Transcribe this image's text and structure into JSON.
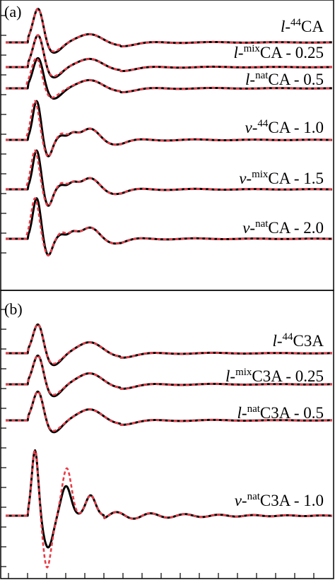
{
  "chart_data": [
    {
      "type": "line",
      "panel_label": "(a)",
      "series_styles": {
        "simulation": {
          "color": "#000000",
          "dash": "solid"
        },
        "model": {
          "color": "#ea3b46",
          "dash": "dotted"
        }
      },
      "curves": [
        {
          "label_prefix": "l-",
          "label_sup": "44",
          "label_main": "CA",
          "label_suffix": "",
          "offset": 0,
          "profile": "liquid",
          "peaks": [
            {
              "x": 1.0,
              "h": 1.05
            },
            {
              "x": 2.6,
              "h": 0.26
            }
          ],
          "dash_shift": 0.0
        },
        {
          "label_prefix": "l-",
          "label_sup": "mix",
          "label_main": "CA",
          "label_suffix": " - 0.25",
          "offset": 0.25,
          "profile": "liquid",
          "peaks": [
            {
              "x": 1.0,
              "h": 1.0
            },
            {
              "x": 2.6,
              "h": 0.26
            }
          ],
          "dash_shift": 0.0
        },
        {
          "label_prefix": "l-",
          "label_sup": "nat",
          "label_main": "CA",
          "label_suffix": " - 0.5",
          "offset": 0.5,
          "profile": "liquid",
          "peaks": [
            {
              "x": 1.0,
              "h": 0.95
            },
            {
              "x": 2.6,
              "h": 0.26
            }
          ],
          "dash_shift": -0.05
        },
        {
          "label_prefix": "v-",
          "label_sup": "44",
          "label_main": "CA",
          "label_suffix": " - 1.0",
          "offset": 1.0,
          "profile": "glass",
          "peaks": [
            {
              "x": 0.95,
              "h": 1.15
            },
            {
              "x": 2.6,
              "h": 0.35
            }
          ],
          "dash_shift": -0.05
        },
        {
          "label_prefix": "v-",
          "label_sup": "mix",
          "label_main": "CA",
          "label_suffix": " - 1.5",
          "offset": 1.5,
          "profile": "glass",
          "peaks": [
            {
              "x": 0.95,
              "h": 1.15
            },
            {
              "x": 2.6,
              "h": 0.35
            }
          ],
          "dash_shift": -0.05
        },
        {
          "label_prefix": "v-",
          "label_sup": "nat",
          "label_main": "CA",
          "label_suffix": " - 2.0",
          "offset": 2.0,
          "profile": "glass",
          "peaks": [
            {
              "x": 0.95,
              "h": 1.2
            },
            {
              "x": 2.6,
              "h": 0.35
            }
          ],
          "dash_shift": -0.05
        }
      ]
    },
    {
      "type": "line",
      "panel_label": "(b)",
      "series_styles": {
        "simulation": {
          "color": "#000000",
          "dash": "solid"
        },
        "model": {
          "color": "#ea3b46",
          "dash": "dotted"
        }
      },
      "curves": [
        {
          "label_prefix": "l-",
          "label_sup": "44",
          "label_main": "C3A",
          "label_suffix": "",
          "offset": 0,
          "profile": "liquid",
          "peaks": [
            {
              "x": 1.0,
              "h": 0.8
            },
            {
              "x": 2.6,
              "h": 0.3
            }
          ],
          "dash_shift": 0.0
        },
        {
          "label_prefix": "l-",
          "label_sup": "mix",
          "label_main": "C3A",
          "label_suffix": " - 0.25",
          "offset": 0.25,
          "profile": "liquid",
          "peaks": [
            {
              "x": 1.0,
              "h": 0.8
            },
            {
              "x": 2.6,
              "h": 0.3
            }
          ],
          "dash_shift": 0.0
        },
        {
          "label_prefix": "l-",
          "label_sup": "nat",
          "label_main": "C3A",
          "label_suffix": " - 0.5",
          "offset": 0.5,
          "profile": "liquid",
          "peaks": [
            {
              "x": 1.0,
              "h": 0.8
            },
            {
              "x": 2.6,
              "h": 0.3
            }
          ],
          "dash_shift": 0.0
        },
        {
          "label_prefix": "v-",
          "label_sup": "nat",
          "label_main": "C3A",
          "label_suffix": " - 1.0",
          "offset": 1.0,
          "profile": "crystal",
          "peaks": [
            {
              "x": 0.9,
              "h": 1.25
            },
            {
              "x": 1.85,
              "h": 0.8
            },
            {
              "x": 2.6,
              "h": 0.55
            }
          ],
          "dash_shift": 0.0
        }
      ]
    }
  ]
}
